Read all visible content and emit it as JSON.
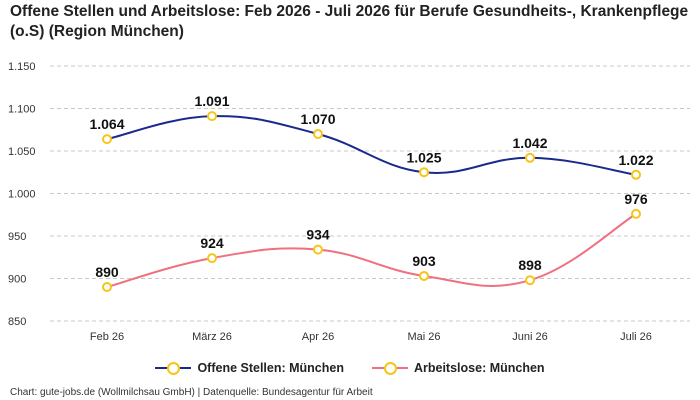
{
  "chart_data": {
    "type": "line",
    "title": "Offene Stellen und Arbeitslose: Feb 2026 - Juli 2026 für Berufe Gesundheits-, Krankenpflege (o.S) (Region München)",
    "categories": [
      "Feb 26",
      "März 26",
      "Apr 26",
      "Mai 26",
      "Juni 26",
      "Juli 26"
    ],
    "series": [
      {
        "name": "Offene Stellen: München",
        "values": [
          1064,
          1091,
          1070,
          1025,
          1042,
          1022
        ],
        "labels": [
          "1.064",
          "1.091",
          "1.070",
          "1.025",
          "1.042",
          "1.022"
        ],
        "color": "#1a2a8c"
      },
      {
        "name": "Arbeitslose: München",
        "values": [
          890,
          924,
          934,
          903,
          898,
          976
        ],
        "labels": [
          "890",
          "924",
          "934",
          "903",
          "898",
          "976"
        ],
        "color": "#f07080"
      }
    ],
    "marker_color": "#f5c518",
    "ylim": [
      850,
      1150
    ],
    "yticks": [
      850,
      900,
      950,
      1000,
      1050,
      1100,
      1150
    ],
    "ytick_labels": [
      "850",
      "900",
      "950",
      "1.000",
      "1.050",
      "1.100",
      "1.150"
    ],
    "grid": true,
    "legend_position": "bottom-center"
  },
  "footer": "Chart: gute-jobs.de (Wollmilchsau GmbH) | Datenquelle: Bundesagentur für Arbeit"
}
